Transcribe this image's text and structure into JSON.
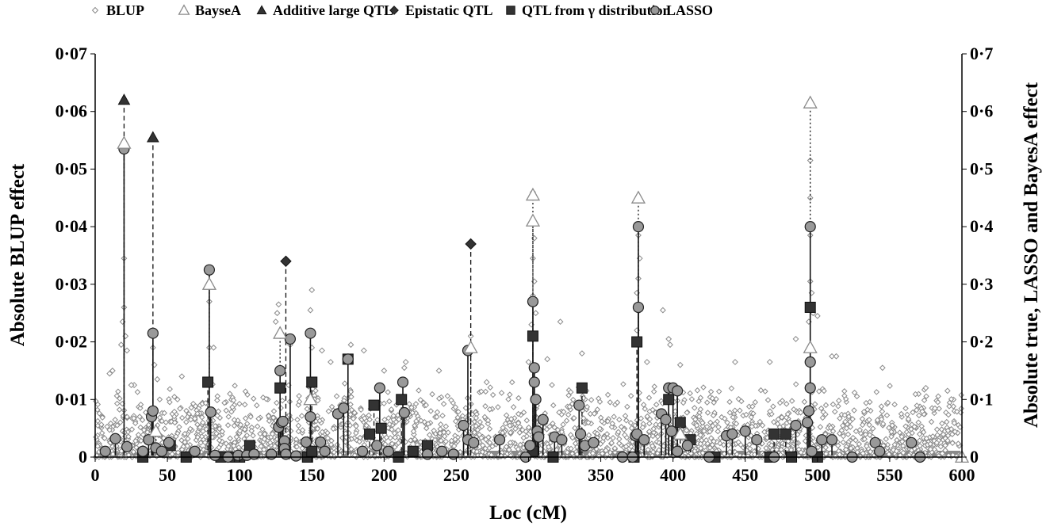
{
  "chart_data": {
    "type": "scatter",
    "xlabel": "Loc (cM)",
    "ylabel_left": "Absolute BLUP effect",
    "ylabel_right": "Absolute true, LASSO and BayesA effect",
    "xlim": [
      0,
      600
    ],
    "ylim_left": [
      0,
      0.07
    ],
    "ylim_right": [
      0,
      0.7
    ],
    "grid": false,
    "legend_placement": "top",
    "x_ticks": [
      "0",
      "50",
      "100",
      "150",
      "200",
      "250",
      "300",
      "350",
      "400",
      "450",
      "500",
      "550",
      "600"
    ],
    "y_ticks_left": [
      "0",
      "0·01",
      "0·02",
      "0·03",
      "0·04",
      "0·05",
      "0·06",
      "0·07"
    ],
    "y_ticks_right": [
      "0",
      "0·1",
      "0·2",
      "0·3",
      "0·4",
      "0·5",
      "0·6",
      "0·7"
    ],
    "legend": [
      "BLUP",
      "BayseA",
      "Additive large QTL",
      "Epistatic QTL",
      "QTL from γ distribution",
      "LASSO"
    ],
    "series": [
      {
        "name": "BLUP",
        "axis": "left",
        "marker": "open-diamond",
        "color": "#8a8a8a",
        "background_density": {
          "count": 2600,
          "typical_max": 0.009
        },
        "points": [
          [
            20,
            0.0345
          ],
          [
            20,
            0.026
          ],
          [
            19,
            0.0235
          ],
          [
            21,
            0.021
          ],
          [
            18,
            0.0195
          ],
          [
            22,
            0.0185
          ],
          [
            12,
            0.015
          ],
          [
            10,
            0.0145
          ],
          [
            79,
            0.027
          ],
          [
            79,
            0.019
          ],
          [
            82,
            0.019
          ],
          [
            60,
            0.014
          ],
          [
            27,
            0.0125
          ],
          [
            25,
            0.0125
          ],
          [
            40,
            0.019
          ],
          [
            41,
            0.016
          ],
          [
            43,
            0.0135
          ],
          [
            127,
            0.0265
          ],
          [
            126,
            0.025
          ],
          [
            125,
            0.0235
          ],
          [
            129,
            0.0215
          ],
          [
            150,
            0.029
          ],
          [
            149,
            0.0255
          ],
          [
            150,
            0.019
          ],
          [
            157,
            0.0185
          ],
          [
            177,
            0.0195
          ],
          [
            186,
            0.0185
          ],
          [
            135,
            0.0195
          ],
          [
            163,
            0.0165
          ],
          [
            215,
            0.0165
          ],
          [
            214,
            0.0155
          ],
          [
            200,
            0.015
          ],
          [
            238,
            0.015
          ],
          [
            260,
            0.021
          ],
          [
            271,
            0.013
          ],
          [
            303,
            0.046
          ],
          [
            304,
            0.038
          ],
          [
            303,
            0.0345
          ],
          [
            304,
            0.0305
          ],
          [
            303,
            0.028
          ],
          [
            305,
            0.025
          ],
          [
            302,
            0.023
          ],
          [
            322,
            0.0235
          ],
          [
            313,
            0.017
          ],
          [
            300,
            0.0165
          ],
          [
            337,
            0.018
          ],
          [
            376,
            0.0385
          ],
          [
            377,
            0.0345
          ],
          [
            376,
            0.031
          ],
          [
            375,
            0.0285
          ],
          [
            377,
            0.0255
          ],
          [
            375,
            0.022
          ],
          [
            393,
            0.0255
          ],
          [
            397,
            0.0205
          ],
          [
            398,
            0.0195
          ],
          [
            405,
            0.016
          ],
          [
            382,
            0.0165
          ],
          [
            443,
            0.0165
          ],
          [
            467,
            0.0165
          ],
          [
            495,
            0.0515
          ],
          [
            495,
            0.045
          ],
          [
            495,
            0.0385
          ],
          [
            495,
            0.0305
          ],
          [
            496,
            0.0285
          ],
          [
            497,
            0.025
          ],
          [
            494,
            0.0235
          ],
          [
            500,
            0.0245
          ],
          [
            485,
            0.0205
          ],
          [
            510,
            0.0175
          ],
          [
            513,
            0.0175
          ],
          [
            545,
            0.0155
          ],
          [
            575,
            0.012
          ],
          [
            590,
            0.0115
          ]
        ]
      },
      {
        "name": "BayseA",
        "axis": "right",
        "marker": "open-triangle",
        "color": "#8a8a8a",
        "stem": "dotted",
        "points": [
          [
            20,
            0.545
          ],
          [
            42,
            0.045
          ],
          [
            79,
            0.3
          ],
          [
            128,
            0.215
          ],
          [
            149,
            0.1
          ],
          [
            260,
            0.19
          ],
          [
            303,
            0.455
          ],
          [
            303,
            0.41
          ],
          [
            376,
            0.45
          ],
          [
            405,
            0.04
          ],
          [
            495,
            0.615
          ],
          [
            495,
            0.19
          ],
          [
            600,
            0.0
          ]
        ]
      },
      {
        "name": "Additive large QTL",
        "axis": "right",
        "marker": "filled-triangle",
        "color": "#333333",
        "stem": "dashed",
        "points": [
          [
            20,
            0.62
          ],
          [
            40,
            0.555
          ]
        ]
      },
      {
        "name": "Epistatic QTL",
        "axis": "right",
        "marker": "filled-diamond",
        "color": "#333333",
        "stem": "dashed",
        "points": [
          [
            132,
            0.34
          ],
          [
            260,
            0.37
          ]
        ]
      },
      {
        "name": "QTL from γ distribution",
        "axis": "right",
        "marker": "filled-square",
        "color": "#333333",
        "stem": "dashed",
        "points": [
          [
            33,
            0.0
          ],
          [
            52,
            0.02
          ],
          [
            63,
            0.0
          ],
          [
            78,
            0.13
          ],
          [
            87,
            0.0
          ],
          [
            95,
            0.0
          ],
          [
            100,
            0.0
          ],
          [
            107,
            0.02
          ],
          [
            128,
            0.12
          ],
          [
            147,
            0.0
          ],
          [
            150,
            0.13
          ],
          [
            150,
            0.01
          ],
          [
            175,
            0.17
          ],
          [
            190,
            0.04
          ],
          [
            193,
            0.09
          ],
          [
            198,
            0.05
          ],
          [
            210,
            0.0
          ],
          [
            212,
            0.1
          ],
          [
            220,
            0.01
          ],
          [
            230,
            0.02
          ],
          [
            303,
            0.21
          ],
          [
            303,
            0.01
          ],
          [
            317,
            0.0
          ],
          [
            337,
            0.12
          ],
          [
            373,
            0.0
          ],
          [
            375,
            0.2
          ],
          [
            397,
            0.1
          ],
          [
            405,
            0.06
          ],
          [
            412,
            0.03
          ],
          [
            429,
            0.0
          ],
          [
            467,
            0.0
          ],
          [
            470,
            0.04
          ],
          [
            478,
            0.04
          ],
          [
            482,
            0.0
          ],
          [
            495,
            0.26
          ],
          [
            500,
            0.0
          ]
        ]
      },
      {
        "name": "LASSO",
        "axis": "right",
        "marker": "filled-circle",
        "color": "#999999",
        "stem": "solid",
        "points": [
          [
            7,
            0.01
          ],
          [
            14,
            0.032
          ],
          [
            20,
            0.535
          ],
          [
            22,
            0.018
          ],
          [
            33,
            0.01
          ],
          [
            37,
            0.03
          ],
          [
            39,
            0.07
          ],
          [
            40,
            0.215
          ],
          [
            40,
            0.08
          ],
          [
            42,
            0.016
          ],
          [
            46,
            0.01
          ],
          [
            51,
            0.025
          ],
          [
            69,
            0.01
          ],
          [
            79,
            0.325
          ],
          [
            80,
            0.078
          ],
          [
            83,
            0.003
          ],
          [
            92,
            0.0
          ],
          [
            99,
            0.003
          ],
          [
            105,
            0.003
          ],
          [
            110,
            0.005
          ],
          [
            122,
            0.005
          ],
          [
            127,
            0.052
          ],
          [
            128,
            0.15
          ],
          [
            129,
            0.06
          ],
          [
            130,
            0.062
          ],
          [
            131,
            0.028
          ],
          [
            131,
            0.015
          ],
          [
            132,
            0.005
          ],
          [
            135,
            0.205
          ],
          [
            139,
            0.002
          ],
          [
            146,
            0.026
          ],
          [
            149,
            0.215
          ],
          [
            149,
            0.07
          ],
          [
            156,
            0.026
          ],
          [
            159,
            0.01
          ],
          [
            168,
            0.075
          ],
          [
            172,
            0.085
          ],
          [
            175,
            0.17
          ],
          [
            185,
            0.01
          ],
          [
            195,
            0.02
          ],
          [
            197,
            0.12
          ],
          [
            203,
            0.01
          ],
          [
            213,
            0.13
          ],
          [
            214,
            0.077
          ],
          [
            230,
            0.005
          ],
          [
            240,
            0.01
          ],
          [
            248,
            0.005
          ],
          [
            255,
            0.055
          ],
          [
            258,
            0.185
          ],
          [
            258,
            0.03
          ],
          [
            262,
            0.025
          ],
          [
            280,
            0.03
          ],
          [
            298,
            0.0
          ],
          [
            301,
            0.02
          ],
          [
            303,
            0.27
          ],
          [
            304,
            0.155
          ],
          [
            304,
            0.13
          ],
          [
            305,
            0.1
          ],
          [
            306,
            0.045
          ],
          [
            307,
            0.035
          ],
          [
            310,
            0.065
          ],
          [
            318,
            0.035
          ],
          [
            323,
            0.03
          ],
          [
            335,
            0.09
          ],
          [
            336,
            0.04
          ],
          [
            339,
            0.02
          ],
          [
            345,
            0.025
          ],
          [
            365,
            0.0
          ],
          [
            372,
            0.0
          ],
          [
            374,
            0.037
          ],
          [
            375,
            0.04
          ],
          [
            376,
            0.4
          ],
          [
            376,
            0.26
          ],
          [
            380,
            0.03
          ],
          [
            392,
            0.075
          ],
          [
            395,
            0.065
          ],
          [
            397,
            0.12
          ],
          [
            399,
            0.045
          ],
          [
            400,
            0.12
          ],
          [
            403,
            0.115
          ],
          [
            403,
            0.01
          ],
          [
            410,
            0.02
          ],
          [
            425,
            0.0
          ],
          [
            437,
            0.037
          ],
          [
            441,
            0.04
          ],
          [
            450,
            0.045
          ],
          [
            458,
            0.03
          ],
          [
            470,
            0.0
          ],
          [
            485,
            0.055
          ],
          [
            493,
            0.06
          ],
          [
            494,
            0.08
          ],
          [
            495,
            0.4
          ],
          [
            495,
            0.165
          ],
          [
            495,
            0.12
          ],
          [
            496,
            0.01
          ],
          [
            503,
            0.03
          ],
          [
            510,
            0.03
          ],
          [
            524,
            0.0
          ],
          [
            540,
            0.025
          ],
          [
            543,
            0.01
          ],
          [
            565,
            0.025
          ],
          [
            571,
            0.0
          ]
        ]
      }
    ]
  }
}
